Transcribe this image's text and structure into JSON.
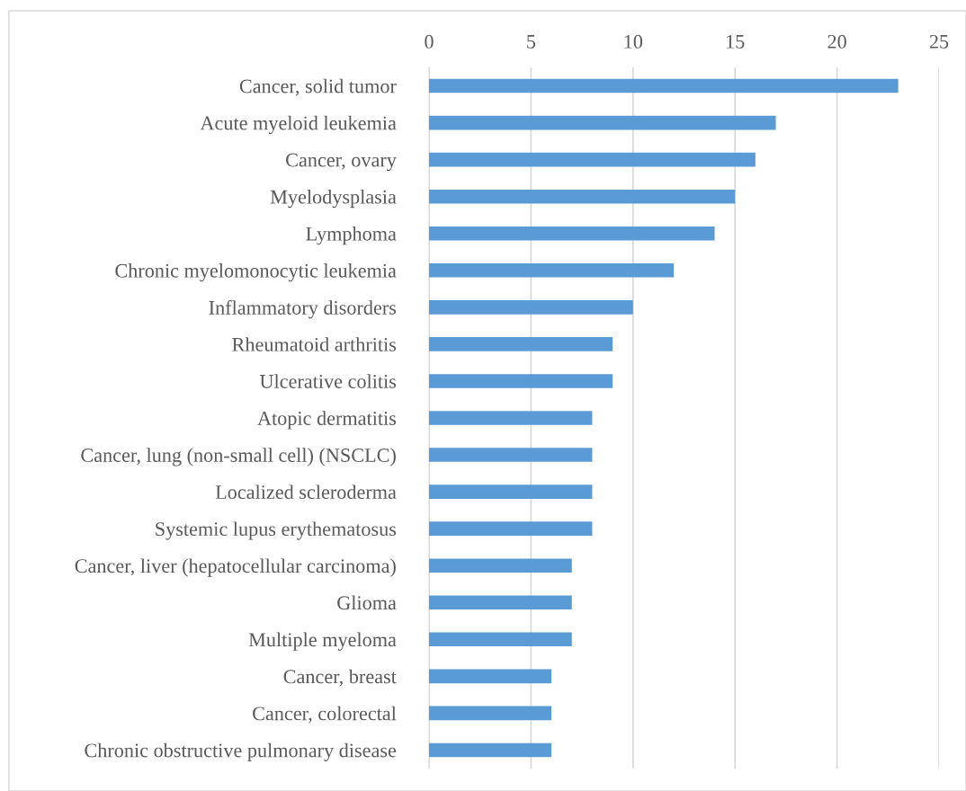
{
  "chart_data": {
    "type": "bar",
    "orientation": "horizontal",
    "categories": [
      "Cancer, solid tumor",
      "Acute myeloid leukemia",
      "Cancer, ovary",
      "Myelodysplasia",
      "Lymphoma",
      "Chronic myelomonocytic leukemia",
      "Inflammatory disorders",
      "Rheumatoid arthritis",
      "Ulcerative colitis",
      "Atopic dermatitis",
      "Cancer, lung (non-small cell) (NSCLC)",
      "Localized scleroderma",
      "Systemic lupus erythematosus",
      "Cancer, liver (hepatocellular carcinoma)",
      "Glioma",
      "Multiple myeloma",
      "Cancer, breast",
      "Cancer, colorectal",
      "Chronic obstructive pulmonary disease"
    ],
    "values": [
      23,
      17,
      16,
      15,
      14,
      12,
      10,
      9,
      9,
      8,
      8,
      8,
      8,
      7,
      7,
      7,
      6,
      6,
      6
    ],
    "color": "#5b9bd5",
    "xlim": [
      0,
      25
    ],
    "xticks": [
      0,
      5,
      10,
      15,
      20,
      25
    ],
    "grid": "x"
  }
}
